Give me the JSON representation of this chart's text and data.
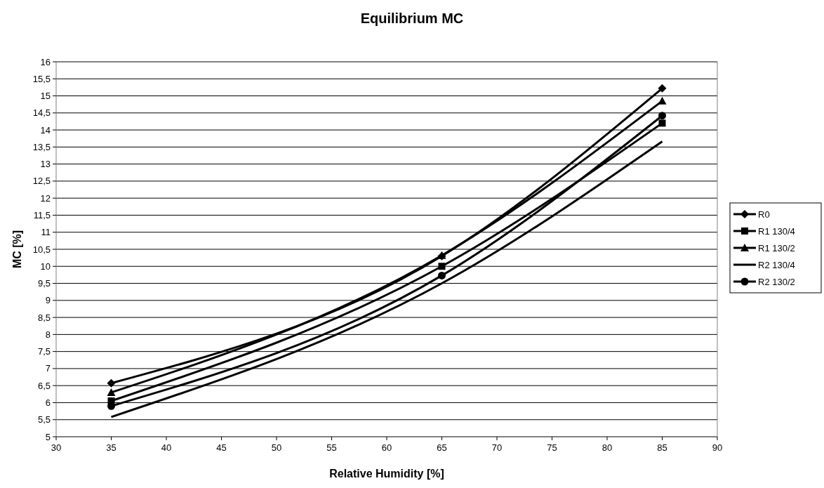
{
  "chart_data": {
    "type": "line",
    "title": "Equilibrium MC",
    "xlabel": "Relative Humidity [%]",
    "ylabel": "MC [%]",
    "x": [
      35,
      65,
      85
    ],
    "series": [
      {
        "name": "R0",
        "color": "#000000",
        "marker": "diamond",
        "values": [
          6.57,
          10.3,
          15.22
        ]
      },
      {
        "name": "R1 130/4",
        "color": "#000000",
        "marker": "square",
        "values": [
          6.05,
          10.0,
          14.2
        ]
      },
      {
        "name": "R1 130/2",
        "color": "#000000",
        "marker": "triangle",
        "values": [
          6.3,
          10.32,
          14.85
        ]
      },
      {
        "name": "R2 130/4",
        "color": "#000000",
        "marker": "none",
        "values": [
          5.58,
          9.5,
          13.66
        ]
      },
      {
        "name": "R2 130/2",
        "color": "#000000",
        "marker": "circle",
        "values": [
          5.9,
          9.73,
          14.42
        ]
      }
    ],
    "xlim": [
      30,
      90
    ],
    "xticks": [
      30,
      35,
      40,
      45,
      50,
      55,
      60,
      65,
      70,
      75,
      80,
      85,
      90
    ],
    "ylim": [
      5,
      16
    ],
    "yticks": [
      {
        "value": 5,
        "label": "5"
      },
      {
        "value": 5.5,
        "label": "5,5"
      },
      {
        "value": 6,
        "label": "6"
      },
      {
        "value": 6.5,
        "label": "6,5"
      },
      {
        "value": 7,
        "label": "7"
      },
      {
        "value": 7.5,
        "label": "7,5"
      },
      {
        "value": 8,
        "label": "8"
      },
      {
        "value": 8.5,
        "label": "8,5"
      },
      {
        "value": 9,
        "label": "9"
      },
      {
        "value": 9.5,
        "label": "9,5"
      },
      {
        "value": 10,
        "label": "10"
      },
      {
        "value": 10.5,
        "label": "10,5"
      },
      {
        "value": 11,
        "label": "11"
      },
      {
        "value": 11.5,
        "label": "11,5"
      },
      {
        "value": 12,
        "label": "12"
      },
      {
        "value": 12.5,
        "label": "12,5"
      },
      {
        "value": 13,
        "label": "13"
      },
      {
        "value": 13.5,
        "label": "13,5"
      },
      {
        "value": 14,
        "label": "14"
      },
      {
        "value": 14.5,
        "label": "14,5"
      },
      {
        "value": 15,
        "label": "15"
      },
      {
        "value": 15.5,
        "label": "15,5"
      },
      {
        "value": 16,
        "label": "16"
      }
    ],
    "grid": "y",
    "legend": "right",
    "line_style": "solid"
  }
}
